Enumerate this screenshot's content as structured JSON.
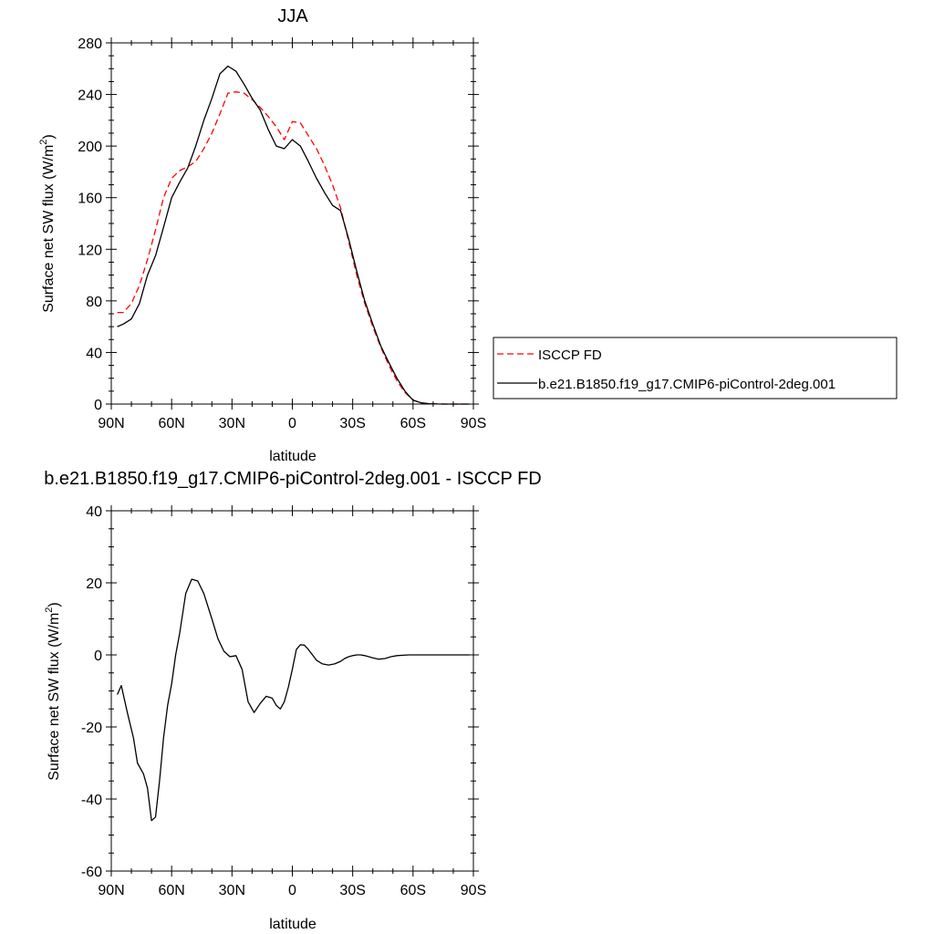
{
  "chart_data": [
    {
      "type": "line",
      "title": "JJA",
      "xlabel": "latitude",
      "ylabel": "Surface net SW flux (W/m",
      "ylabel_sup": "2",
      "ylabel_end": ")",
      "xlim": [
        90,
        -90
      ],
      "ylim": [
        0,
        280
      ],
      "x_ticks": [
        90,
        60,
        30,
        0,
        -30,
        -60,
        -90
      ],
      "x_tick_labels": [
        "90N",
        "60N",
        "30N",
        "0",
        "30S",
        "60S",
        "90S"
      ],
      "y_ticks": [
        0,
        40,
        80,
        120,
        160,
        200,
        240,
        280
      ],
      "y_tick_labels": [
        "0",
        "40",
        "80",
        "120",
        "160",
        "200",
        "240",
        "280"
      ],
      "grid": false,
      "legend_position": "right",
      "series": [
        {
          "name": "ISCCP FD",
          "color": "#ff0000",
          "dash": "dashed",
          "x": [
            87,
            84,
            80,
            76,
            72,
            68,
            64,
            60,
            56,
            52,
            48,
            44,
            40,
            36,
            32,
            28,
            24,
            20,
            16,
            12,
            8,
            4,
            0,
            -4,
            -8,
            -12,
            -16,
            -20,
            -24,
            -28,
            -32,
            -36,
            -40,
            -44,
            -48,
            -52,
            -56,
            -60,
            -64,
            -68,
            -72,
            -76,
            -80,
            -84,
            -88
          ],
          "y": [
            71,
            71,
            78,
            92,
            112,
            135,
            160,
            175,
            181,
            184,
            188,
            198,
            210,
            225,
            241,
            242,
            241,
            236,
            230,
            223,
            215,
            205,
            219,
            218,
            208,
            198,
            185,
            170,
            152,
            126,
            100,
            78,
            60,
            44,
            30,
            18,
            9,
            3,
            1,
            0.3,
            0.1,
            0,
            0,
            0,
            0
          ]
        },
        {
          "name": "b.e21.B1850.f19_g17.CMIP6-piControl-2deg.001",
          "color": "#000000",
          "dash": "solid",
          "x": [
            87,
            84,
            80,
            76,
            72,
            68,
            64,
            60,
            56,
            52,
            48,
            44,
            40,
            36,
            32,
            28,
            24,
            20,
            16,
            12,
            8,
            4,
            0,
            -4,
            -8,
            -12,
            -16,
            -20,
            -24,
            -28,
            -32,
            -36,
            -40,
            -44,
            -48,
            -52,
            -56,
            -60,
            -64,
            -68,
            -72,
            -76,
            -80,
            -84,
            -88
          ],
          "y": [
            60,
            62,
            66,
            78,
            100,
            115,
            137,
            160,
            172,
            183,
            200,
            220,
            237,
            256,
            262,
            258,
            248,
            237,
            228,
            213,
            200,
            198,
            205,
            200,
            188,
            175,
            164,
            154,
            150,
            128,
            103,
            80,
            62,
            45,
            32,
            20,
            10,
            3,
            1,
            0.3,
            0.1,
            0,
            0,
            0,
            0
          ]
        }
      ]
    },
    {
      "type": "line",
      "title": "b.e21.B1850.f19_g17.CMIP6-piControl-2deg.001 - ISCCP FD",
      "xlabel": "latitude",
      "ylabel": "Surface net SW flux (W/m",
      "ylabel_sup": "2",
      "ylabel_end": ")",
      "xlim": [
        90,
        -90
      ],
      "ylim": [
        -60,
        40
      ],
      "x_ticks": [
        90,
        60,
        30,
        0,
        -30,
        -60,
        -90
      ],
      "x_tick_labels": [
        "90N",
        "60N",
        "30N",
        "0",
        "30S",
        "60S",
        "90S"
      ],
      "y_ticks": [
        -60,
        -40,
        -20,
        0,
        20,
        40
      ],
      "y_tick_labels": [
        "-60",
        "-40",
        "-20",
        "0",
        "20",
        "40"
      ],
      "grid": false,
      "series": [
        {
          "color": "#000000",
          "dash": "solid",
          "x": [
            87,
            85,
            82,
            79,
            77,
            74,
            72,
            70,
            68,
            66,
            64,
            62,
            60,
            58,
            56,
            53,
            50,
            47,
            44,
            40,
            37,
            34,
            31,
            28,
            25,
            22,
            19,
            16,
            13,
            10,
            8,
            6,
            4,
            2,
            0,
            -2,
            -4,
            -6,
            -8,
            -10,
            -12,
            -15,
            -18,
            -21,
            -24,
            -26,
            -28,
            -30,
            -32,
            -34,
            -36,
            -38,
            -40,
            -43,
            -46,
            -49,
            -52,
            -55,
            -58,
            -62,
            -66,
            -70,
            -74,
            -78,
            -82,
            -86,
            -88
          ],
          "y": [
            -11,
            -8.5,
            -16,
            -23,
            -30,
            -33,
            -37,
            -46,
            -45,
            -35,
            -23,
            -14,
            -8,
            0,
            6,
            17,
            21,
            20.5,
            17,
            10,
            4.5,
            1,
            -0.5,
            -0.2,
            -4,
            -13,
            -16,
            -13.5,
            -11.5,
            -12,
            -14,
            -15,
            -13,
            -9,
            -4,
            1.5,
            2.8,
            2.7,
            1.5,
            0,
            -1.5,
            -2.5,
            -2.8,
            -2.5,
            -1.8,
            -1.0,
            -0.5,
            -0.2,
            0,
            0,
            -0.2,
            -0.5,
            -0.8,
            -1.2,
            -1.0,
            -0.5,
            -0.2,
            -0.1,
            0,
            0,
            0,
            0,
            0,
            0,
            0,
            0,
            0
          ]
        }
      ]
    }
  ]
}
